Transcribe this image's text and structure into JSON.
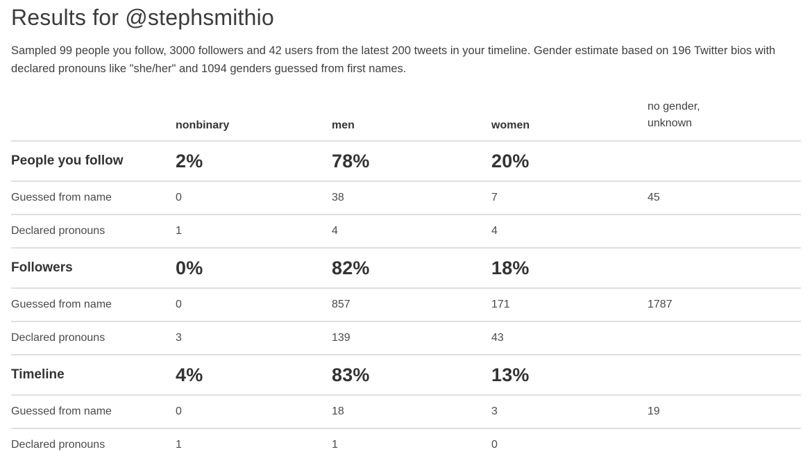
{
  "page": {
    "title": "Results for @stephsmithio",
    "subtitle": "Sampled 99 people you follow, 3000 followers and 42 users from the latest 200 tweets in your timeline. Gender estimate based on 196 Twitter bios with declared pronouns like \"she/her\" and 1094 genders guessed from first names."
  },
  "table": {
    "columns": [
      "nonbinary",
      "men",
      "women",
      "no gender,\nunknown"
    ],
    "sections": [
      {
        "label": "People you follow",
        "percents": [
          "2%",
          "78%",
          "20%",
          ""
        ],
        "rows": [
          {
            "label": "Guessed from name",
            "values": [
              "0",
              "38",
              "7",
              "45"
            ]
          },
          {
            "label": "Declared pronouns",
            "values": [
              "1",
              "4",
              "4",
              ""
            ]
          }
        ]
      },
      {
        "label": "Followers",
        "percents": [
          "0%",
          "82%",
          "18%",
          ""
        ],
        "rows": [
          {
            "label": "Guessed from name",
            "values": [
              "0",
              "857",
              "171",
              "1787"
            ]
          },
          {
            "label": "Declared pronouns",
            "values": [
              "3",
              "139",
              "43",
              ""
            ]
          }
        ]
      },
      {
        "label": "Timeline",
        "percents": [
          "4%",
          "83%",
          "13%",
          ""
        ],
        "rows": [
          {
            "label": "Guessed from name",
            "values": [
              "0",
              "18",
              "3",
              "19"
            ]
          },
          {
            "label": "Declared pronouns",
            "values": [
              "1",
              "1",
              "0",
              ""
            ]
          }
        ]
      }
    ]
  }
}
